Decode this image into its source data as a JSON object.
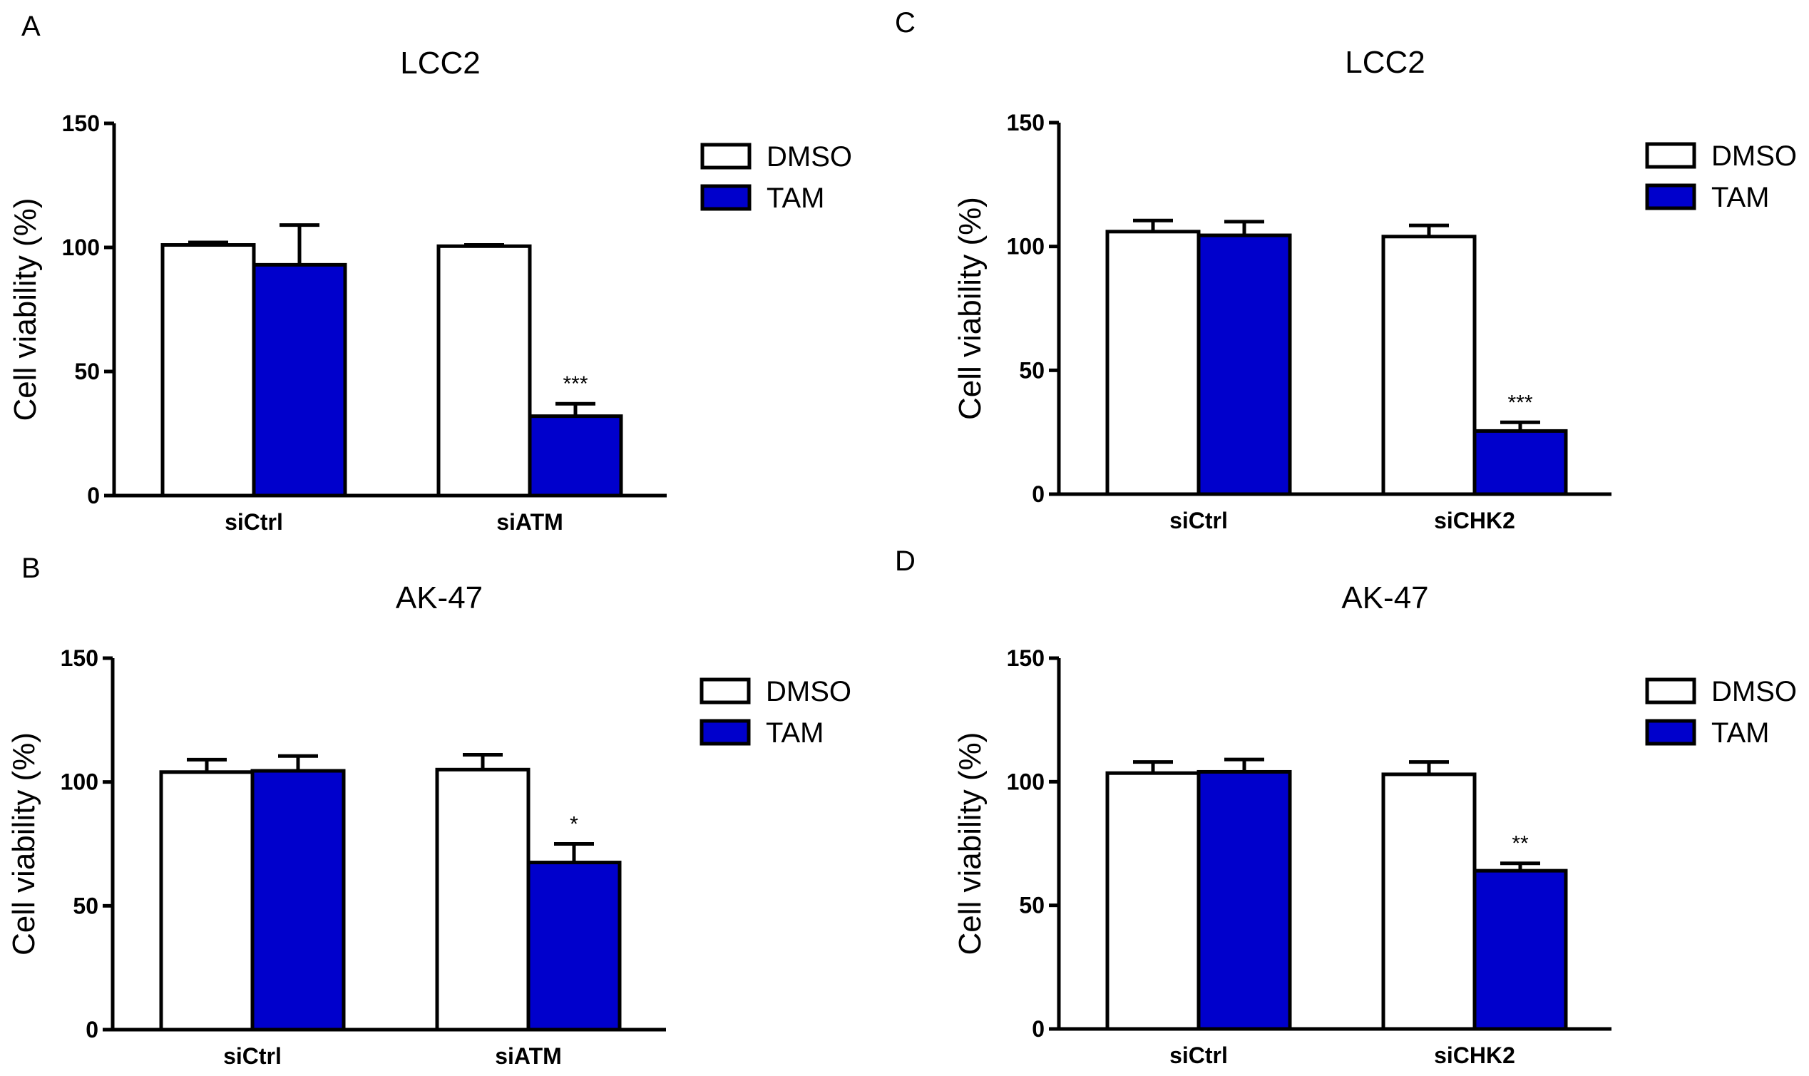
{
  "chart_data": [
    {
      "panel": "A",
      "type": "bar",
      "title": "LCC2",
      "ylabel": "Cell viability (%)",
      "xlabel": "",
      "categories": [
        "siCtrl",
        "siATM"
      ],
      "ylim": [
        0,
        150
      ],
      "yticks": [
        0,
        50,
        100,
        150
      ],
      "series": [
        {
          "name": "DMSO",
          "color": "#ffffff",
          "values": [
            101,
            100.5
          ],
          "errors": [
            1,
            0.5
          ]
        },
        {
          "name": "TAM",
          "color": "#0000cc",
          "values": [
            93,
            32
          ],
          "errors": [
            16,
            5
          ]
        }
      ],
      "annotations": [
        {
          "series": "TAM",
          "category": "siATM",
          "text": "***"
        }
      ],
      "legend": "right"
    },
    {
      "panel": "B",
      "type": "bar",
      "title": "AK-47",
      "ylabel": "Cell viability (%)",
      "xlabel": "",
      "categories": [
        "siCtrl",
        "siATM"
      ],
      "ylim": [
        0,
        150
      ],
      "yticks": [
        0,
        50,
        100,
        150
      ],
      "series": [
        {
          "name": "DMSO",
          "color": "#ffffff",
          "values": [
            104,
            105
          ],
          "errors": [
            5,
            6
          ]
        },
        {
          "name": "TAM",
          "color": "#0000cc",
          "values": [
            104.5,
            67.5
          ],
          "errors": [
            6,
            7.5
          ]
        }
      ],
      "annotations": [
        {
          "series": "TAM",
          "category": "siATM",
          "text": "*"
        }
      ],
      "legend": "right"
    },
    {
      "panel": "C",
      "type": "bar",
      "title": "LCC2",
      "ylabel": "Cell viability (%)",
      "xlabel": "",
      "categories": [
        "siCtrl",
        "siCHK2"
      ],
      "ylim": [
        0,
        150
      ],
      "yticks": [
        0,
        50,
        100,
        150
      ],
      "series": [
        {
          "name": "DMSO",
          "color": "#ffffff",
          "values": [
            106,
            104
          ],
          "errors": [
            4.5,
            4.5
          ]
        },
        {
          "name": "TAM",
          "color": "#0000cc",
          "values": [
            104.5,
            25.5
          ],
          "errors": [
            5.5,
            3.5
          ]
        }
      ],
      "annotations": [
        {
          "series": "TAM",
          "category": "siCHK2",
          "text": "***"
        }
      ],
      "legend": "right"
    },
    {
      "panel": "D",
      "type": "bar",
      "title": "AK-47",
      "ylabel": "Cell viability (%)",
      "xlabel": "",
      "categories": [
        "siCtrl",
        "siCHK2"
      ],
      "ylim": [
        0,
        150
      ],
      "yticks": [
        0,
        50,
        100,
        150
      ],
      "series": [
        {
          "name": "DMSO",
          "color": "#ffffff",
          "values": [
            103.5,
            103
          ],
          "errors": [
            4.5,
            5
          ]
        },
        {
          "name": "TAM",
          "color": "#0000cc",
          "values": [
            104,
            64
          ],
          "errors": [
            5,
            3
          ]
        }
      ],
      "annotations": [
        {
          "series": "TAM",
          "category": "siCHK2",
          "text": "**"
        }
      ],
      "legend": "right"
    }
  ]
}
